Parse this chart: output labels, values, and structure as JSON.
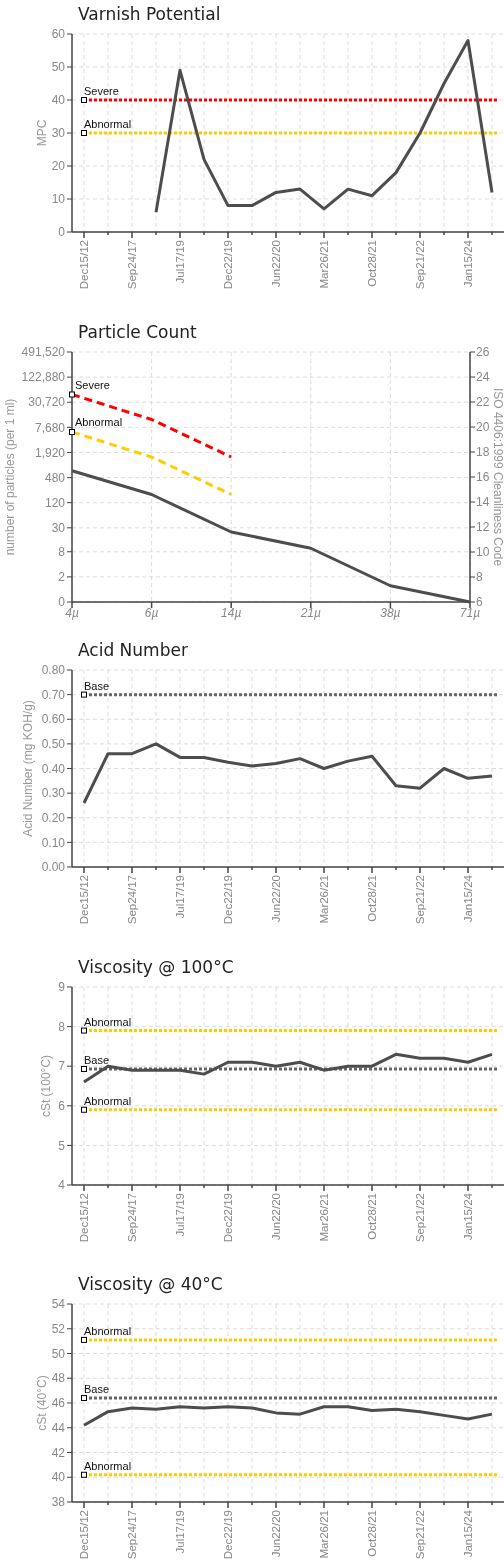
{
  "chart_data": [
    {
      "type": "line",
      "title": "Varnish Potential",
      "ylabel": "MPC",
      "categories": [
        "Dec15/12",
        null,
        "Sep24/17",
        null,
        "Jul17/19",
        null,
        "Dec22/19",
        null,
        "Jun22/20",
        null,
        "Mar26/21",
        null,
        "Oct28/21",
        null,
        "Sep21/22",
        null,
        "Jan15/24",
        null
      ],
      "series": [
        {
          "color": "#4d4d4d",
          "values": [
            null,
            null,
            null,
            6,
            49,
            22,
            8,
            8,
            12,
            13,
            7,
            13,
            11,
            18,
            30,
            45,
            58,
            12
          ]
        }
      ],
      "ylim": [
        0,
        60
      ],
      "yticks": [
        0,
        10,
        20,
        30,
        40,
        50,
        60
      ],
      "grid": true,
      "ref_lines": [
        {
          "axis": "y",
          "value": 40,
          "label": "Severe",
          "color": "#ff0000",
          "line_style": "dotted"
        },
        {
          "axis": "y",
          "value": 30,
          "label": "Abnormal",
          "color": "#ffcc00",
          "line_style": "dotted"
        }
      ]
    },
    {
      "type": "line",
      "title": "Particle Count",
      "ylabel": "number of particles (per 1 ml)",
      "y2label": "ISO 4406:1999 Cleanliness Code",
      "categories": [
        "4µ",
        "6µ",
        "14µ",
        "21µ",
        "38µ",
        "71µ"
      ],
      "series": [
        {
          "color": "#4d4d4d",
          "axis": "y2",
          "values": [
            16.5,
            14.6,
            11.6,
            10.3,
            7.3,
            6
          ]
        },
        {
          "name": "Severe",
          "color": "#ff0000",
          "axis": "y2",
          "line_style": "dashed",
          "values": [
            22.6,
            20.6,
            17.6,
            null,
            null,
            null
          ]
        },
        {
          "name": "Abnormal",
          "color": "#ffcc00",
          "axis": "y2",
          "line_style": "dashed",
          "values": [
            19.6,
            17.6,
            14.6,
            null,
            null,
            null
          ]
        }
      ],
      "log": "y",
      "ylim": [
        0.5,
        491520
      ],
      "yticks": [
        {
          "value": 0.5,
          "label": "0"
        },
        2,
        8,
        30,
        120,
        480,
        {
          "value": 1920,
          "label": "1,920"
        },
        {
          "value": 7680,
          "label": "7,680"
        },
        {
          "value": 30720,
          "label": "30,720"
        },
        {
          "value": 122880,
          "label": "122,880"
        },
        {
          "value": 491520,
          "label": "491,520"
        }
      ],
      "y2lim": [
        6,
        26
      ],
      "y2ticks": [
        6,
        8,
        10,
        12,
        14,
        16,
        18,
        20,
        22,
        24,
        26
      ],
      "grid": true
    },
    {
      "type": "line",
      "title": "Acid Number",
      "ylabel": "Acid Number (mg KOH/g)",
      "categories": [
        "Dec15/12",
        null,
        "Sep24/17",
        null,
        "Jul17/19",
        null,
        "Dec22/19",
        null,
        "Jun22/20",
        null,
        "Mar26/21",
        null,
        "Oct28/21",
        null,
        "Sep21/22",
        null,
        "Jan15/24",
        null
      ],
      "series": [
        {
          "color": "#4d4d4d",
          "values": [
            0.26,
            0.46,
            0.46,
            0.5,
            0.445,
            0.445,
            0.425,
            0.41,
            0.42,
            0.44,
            0.4,
            0.43,
            0.45,
            0.33,
            0.32,
            0.4,
            0.36,
            0.37
          ]
        }
      ],
      "ylim": [
        0,
        0.8
      ],
      "yticks": [
        {
          "value": 0,
          "label": "0.00"
        },
        {
          "value": 0.1,
          "label": "0.10"
        },
        {
          "value": 0.2,
          "label": "0.20"
        },
        {
          "value": 0.3,
          "label": "0.30"
        },
        {
          "value": 0.4,
          "label": "0.40"
        },
        {
          "value": 0.5,
          "label": "0.50"
        },
        {
          "value": 0.6,
          "label": "0.60"
        },
        {
          "value": 0.7,
          "label": "0.70"
        },
        {
          "value": 0.8,
          "label": "0.80"
        }
      ],
      "grid": true,
      "ref_lines": [
        {
          "axis": "y",
          "value": 0.7,
          "label": "Base",
          "color": "#666666",
          "line_style": "dotted"
        }
      ]
    },
    {
      "type": "line",
      "title": "Viscosity @ 100°C",
      "ylabel": "cSt (100°C)",
      "categories": [
        "Dec15/12",
        null,
        "Sep24/17",
        null,
        "Jul17/19",
        null,
        "Dec22/19",
        null,
        "Jun22/20",
        null,
        "Mar26/21",
        null,
        "Oct28/21",
        null,
        "Sep21/22",
        null,
        "Jan15/24",
        null
      ],
      "series": [
        {
          "color": "#4d4d4d",
          "values": [
            6.6,
            7.0,
            6.9,
            6.9,
            6.9,
            6.8,
            7.1,
            7.1,
            7.0,
            7.1,
            6.9,
            7.0,
            7.0,
            7.3,
            7.2,
            7.2,
            7.1,
            7.3
          ]
        }
      ],
      "ylim": [
        4,
        9
      ],
      "yticks": [
        4,
        5,
        6,
        7,
        8,
        9
      ],
      "grid": true,
      "ref_lines": [
        {
          "axis": "y",
          "value": 7.9,
          "label": "Abnormal",
          "color": "#ffcc00",
          "line_style": "dotted"
        },
        {
          "axis": "y",
          "value": 6.93,
          "label": "Base",
          "color": "#666666",
          "line_style": "dotted"
        },
        {
          "axis": "y",
          "value": 5.9,
          "label": "Abnormal",
          "color": "#ffcc00",
          "line_style": "dotted"
        }
      ]
    },
    {
      "type": "line",
      "title": "Viscosity @ 40°C",
      "ylabel": "cSt (40°C)",
      "categories": [
        "Dec15/12",
        null,
        "Sep24/17",
        null,
        "Jul17/19",
        null,
        "Dec22/19",
        null,
        "Jun22/20",
        null,
        "Mar26/21",
        null,
        "Oct28/21",
        null,
        "Sep21/22",
        null,
        "Jan15/24",
        null
      ],
      "series": [
        {
          "color": "#4d4d4d",
          "values": [
            44.2,
            45.3,
            45.6,
            45.5,
            45.7,
            45.6,
            45.7,
            45.6,
            45.2,
            45.1,
            45.7,
            45.7,
            45.4,
            45.5,
            45.3,
            45.0,
            44.7,
            45.1
          ]
        }
      ],
      "ylim": [
        38,
        54
      ],
      "yticks": [
        38,
        40,
        42,
        44,
        46,
        48,
        50,
        52,
        54
      ],
      "grid": true,
      "ref_lines": [
        {
          "axis": "y",
          "value": 51.1,
          "label": "Abnormal",
          "color": "#ffcc00",
          "line_style": "dotted"
        },
        {
          "axis": "y",
          "value": 46.4,
          "label": "Base",
          "color": "#666666",
          "line_style": "dotted"
        },
        {
          "axis": "y",
          "value": 40.2,
          "label": "Abnormal",
          "color": "#ffcc00",
          "line_style": "dotted"
        }
      ]
    }
  ]
}
